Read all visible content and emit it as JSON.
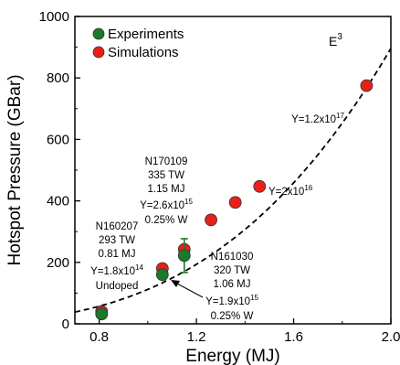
{
  "chart_data": {
    "type": "scatter",
    "xlabel": "Energy (MJ)",
    "ylabel": "Hotspot Pressure (GBar)",
    "xlim": [
      0.7,
      2.0
    ],
    "ylim": [
      0,
      1000
    ],
    "x_ticks": [
      "0.8",
      "1.2",
      "1.6",
      "2.0"
    ],
    "y_ticks": [
      "0",
      "200",
      "400",
      "600",
      "800",
      "1000"
    ],
    "grid": false,
    "legend_position": "top-left",
    "series": [
      {
        "name": "Experiments",
        "color": "#1a7a2a",
        "points": [
          {
            "x": 0.81,
            "y": 32
          },
          {
            "x": 1.06,
            "y": 160,
            "yerr": 15
          },
          {
            "x": 1.15,
            "y": 222,
            "yerr": 55
          }
        ]
      },
      {
        "name": "Simulations",
        "color": "#e8201a",
        "points": [
          {
            "x": 0.81,
            "y": 40
          },
          {
            "x": 1.06,
            "y": 180
          },
          {
            "x": 1.15,
            "y": 242
          },
          {
            "x": 1.26,
            "y": 338
          },
          {
            "x": 1.36,
            "y": 395
          },
          {
            "x": 1.46,
            "y": 447
          },
          {
            "x": 1.9,
            "y": 775
          }
        ]
      }
    ],
    "fit_curve": {
      "label_base": "E",
      "label_sup": "3",
      "style": "dashed",
      "coefficient": 112,
      "exponent": 3
    },
    "annotations": {
      "n170109": {
        "name": "N170109",
        "power": "335 TW",
        "energy": "1.15 MJ",
        "yield_base": "Y=2.6x10",
        "yield_exp": "15",
        "dopant": "0.25% W"
      },
      "n160207": {
        "name": "N160207",
        "power": "293 TW",
        "energy": "0.81 MJ",
        "yield_base": "Y=1.8x10",
        "yield_exp": "14",
        "dopant": "Undoped"
      },
      "n161030": {
        "name": "N161030",
        "power": "320 TW",
        "energy": "1.06 MJ",
        "yield_base": "Y=1.9x10",
        "yield_exp": "15",
        "dopant": "0.25% W"
      },
      "y_sim_190": {
        "base": "Y=1.2x10",
        "exp": "17"
      },
      "y_sim_146": {
        "base": "Y=2x10",
        "exp": "16"
      }
    }
  }
}
